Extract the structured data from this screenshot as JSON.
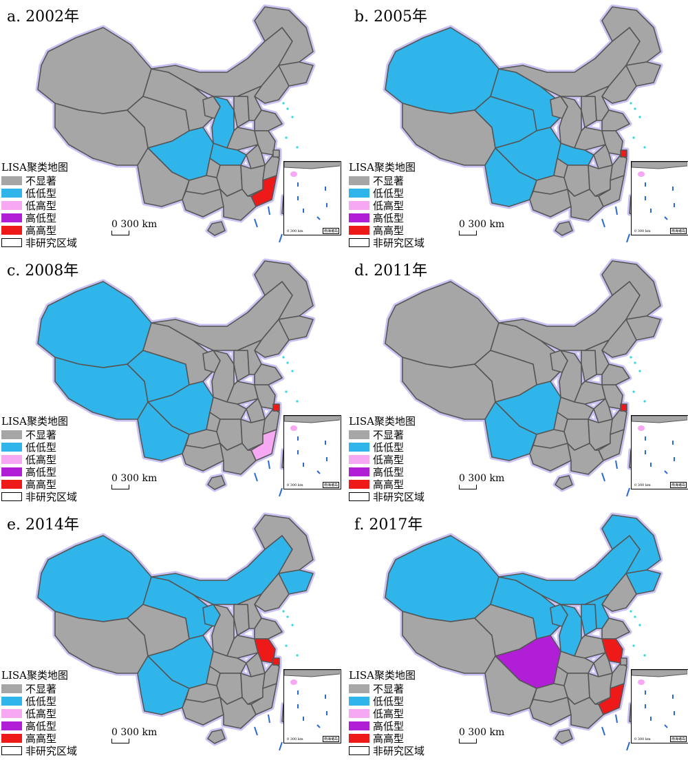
{
  "legend": {
    "title": "LISA聚类地图",
    "items": [
      {
        "label": "不显著",
        "color": "#a6a6a6"
      },
      {
        "label": "低低型",
        "color": "#2fb5ea"
      },
      {
        "label": "低高型",
        "color": "#f7a8f2"
      },
      {
        "label": "高低型",
        "color": "#b01ed6"
      },
      {
        "label": "高高型",
        "color": "#ee1a1a"
      },
      {
        "label": "非研究区域",
        "color": "#ffffff"
      }
    ]
  },
  "scale_label": "0  300 km",
  "inset_label": "南海诸岛",
  "inset_scale": "0 300 km",
  "panels": [
    {
      "title": "a. 2002年",
      "low_low": [
        "sichuan",
        "shaanxi",
        "hubei"
      ],
      "high_high": [
        "fujian"
      ],
      "low_high": [],
      "high_low": []
    },
    {
      "title": "b. 2005年",
      "low_low": [
        "xinjiang",
        "qinghai",
        "sichuan",
        "yunnan",
        "gansu",
        "hubei"
      ],
      "high_high": [
        "shanghai"
      ],
      "low_high": [],
      "high_low": []
    },
    {
      "title": "c. 2008年",
      "low_low": [
        "xinjiang",
        "tibet",
        "qinghai",
        "sichuan",
        "yunnan"
      ],
      "high_high": [
        "shanghai"
      ],
      "low_high": [
        "fujian"
      ],
      "high_low": []
    },
    {
      "title": "d. 2011年",
      "low_low": [
        "sichuan",
        "yunnan"
      ],
      "high_high": [
        "shanghai"
      ],
      "low_high": [],
      "high_low": []
    },
    {
      "title": "e. 2014年",
      "low_low": [
        "xinjiang",
        "gansu",
        "innermongolia",
        "ningxia",
        "sichuan",
        "yunnan",
        "jilin"
      ],
      "high_high": [
        "jiangsu",
        "shanghai"
      ],
      "low_high": [],
      "high_low": []
    },
    {
      "title": "f. 2017年",
      "low_low": [
        "xinjiang",
        "gansu",
        "innermongolia",
        "ningxia",
        "shaanxi",
        "shanxi",
        "hebei",
        "jilin",
        "heilongjiang"
      ],
      "high_high": [
        "jiangsu",
        "fujian"
      ],
      "low_high": [],
      "high_low": [
        "sichuan"
      ]
    }
  ]
}
